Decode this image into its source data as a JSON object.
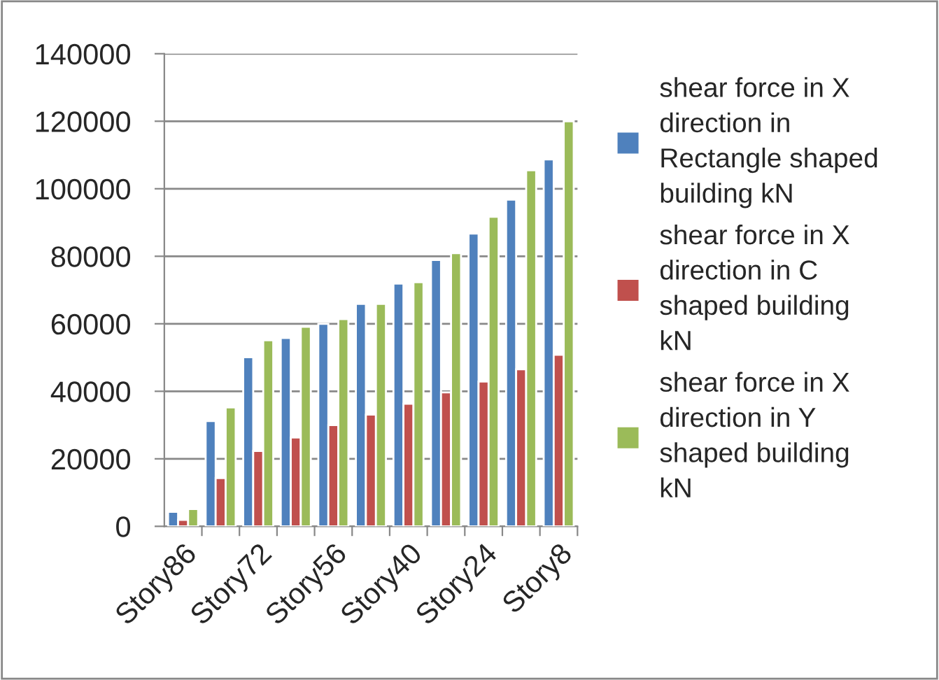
{
  "chart_data": {
    "type": "bar",
    "categories": [
      "Story86",
      null,
      "Story72",
      null,
      "Story56",
      null,
      "Story40",
      null,
      "Story24",
      null,
      "Story8"
    ],
    "series": [
      {
        "name": "shear force in X direction in Rectangle shaped building kN",
        "color": "#4f81bd",
        "values": [
          4300,
          31200,
          50100,
          55800,
          60000,
          65900,
          71900,
          78900,
          86700,
          96800,
          108700
        ]
      },
      {
        "name": "shear force in X direction in C shaped building kN",
        "color": "#c0504d",
        "values": [
          1900,
          14300,
          22300,
          26300,
          30000,
          33100,
          36300,
          39700,
          42900,
          46500,
          50800
        ]
      },
      {
        "name": "shear force in X direction in Y shaped building kN",
        "color": "#9bbb59",
        "values": [
          5100,
          35200,
          55100,
          59100,
          61400,
          65900,
          72300,
          80900,
          91700,
          105500,
          120000
        ]
      }
    ],
    "ylim": [
      0,
      140000
    ],
    "yticks": [
      0,
      20000,
      40000,
      60000,
      80000,
      100000,
      120000,
      140000
    ],
    "grid": "y",
    "legend": "right"
  }
}
